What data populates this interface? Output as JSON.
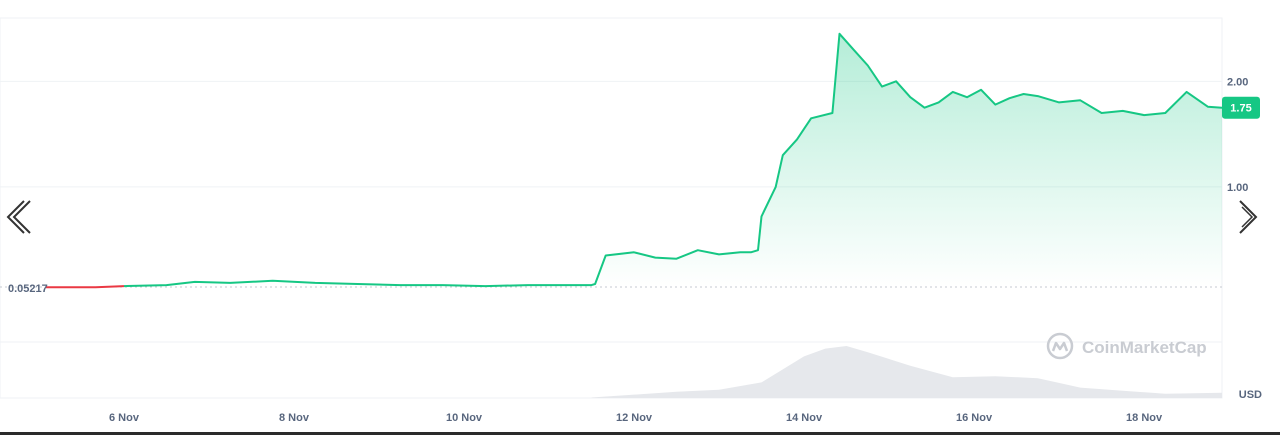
{
  "navigation": {
    "prev_icon": "chevron-left-double-icon",
    "next_icon": "chevron-right-icon"
  },
  "watermark": {
    "text": "CoinMarketCap",
    "icon": "coinmarketcap-logo-icon"
  },
  "currency_label": "USD",
  "colors": {
    "up_line": "#16c784",
    "down_line": "#ea3943",
    "area_top": "#16c784",
    "grid": "#eff2f5",
    "baseline": "#c5c9d0",
    "volume": "#e6e8ec",
    "badge_bg": "#16c784"
  },
  "chart_data": {
    "type": "area",
    "title": "",
    "xlabel": "",
    "ylabel": "USD",
    "x_ticks": [
      "6 Nov",
      "8 Nov",
      "10 Nov",
      "12 Nov",
      "14 Nov",
      "16 Nov",
      "18 Nov"
    ],
    "y_ticks": [
      "1.00",
      "2.00"
    ],
    "ylim": [
      -1.0,
      2.6
    ],
    "xlim": [
      "4 Nov 13:00",
      "18 Nov 22:00"
    ],
    "baseline_value": 0.05217,
    "baseline_label": "0.05217",
    "current_price": "1.75",
    "grid": true,
    "x": [
      "5 Nov 02:00",
      "5 Nov 12:00",
      "5 Nov 16:00",
      "6 Nov 00:00",
      "6 Nov 12:00",
      "6 Nov 20:00",
      "7 Nov 06:00",
      "7 Nov 18:00",
      "8 Nov 06:00",
      "8 Nov 18:00",
      "9 Nov 06:00",
      "9 Nov 18:00",
      "10 Nov 06:00",
      "10 Nov 18:00",
      "11 Nov 06:00",
      "11 Nov 12:00",
      "11 Nov 13:00",
      "11 Nov 16:00",
      "12 Nov 00:00",
      "12 Nov 06:00",
      "12 Nov 12:00",
      "12 Nov 18:00",
      "13 Nov 00:00",
      "13 Nov 06:00",
      "13 Nov 09:00",
      "13 Nov 11:00",
      "13 Nov 12:00",
      "13 Nov 16:00",
      "13 Nov 18:00",
      "13 Nov 22:00",
      "14 Nov 02:00",
      "14 Nov 08:00",
      "14 Nov 10:00",
      "14 Nov 14:00",
      "14 Nov 18:00",
      "14 Nov 22:00",
      "15 Nov 02:00",
      "15 Nov 06:00",
      "15 Nov 10:00",
      "15 Nov 14:00",
      "15 Nov 18:00",
      "15 Nov 22:00",
      "16 Nov 02:00",
      "16 Nov 06:00",
      "16 Nov 10:00",
      "16 Nov 14:00",
      "16 Nov 18:00",
      "17 Nov 00:00",
      "17 Nov 06:00",
      "17 Nov 12:00",
      "17 Nov 18:00",
      "18 Nov 00:00",
      "18 Nov 06:00",
      "18 Nov 12:00",
      "18 Nov 18:00",
      "18 Nov 22:00"
    ],
    "series": [
      {
        "values": [
          0.05,
          0.05,
          0.05,
          0.06,
          0.07,
          0.1,
          0.09,
          0.11,
          0.09,
          0.08,
          0.07,
          0.07,
          0.06,
          0.07,
          0.07,
          0.07,
          0.08,
          0.35,
          0.38,
          0.33,
          0.32,
          0.4,
          0.36,
          0.38,
          0.38,
          0.4,
          0.72,
          1.0,
          1.3,
          1.45,
          1.65,
          1.7,
          2.45,
          2.3,
          2.15,
          1.95,
          2.0,
          1.85,
          1.75,
          1.8,
          1.9,
          1.85,
          1.92,
          1.78,
          1.84,
          1.88,
          1.86,
          1.8,
          1.82,
          1.7,
          1.72,
          1.68,
          1.7,
          1.9,
          1.76,
          1.75
        ],
        "down_until_index": 3
      }
    ],
    "volume": {
      "x": [
        "11 Nov 12:00",
        "12 Nov 12:00",
        "13 Nov 00:00",
        "13 Nov 12:00",
        "13 Nov 18:00",
        "14 Nov 00:00",
        "14 Nov 06:00",
        "14 Nov 12:00",
        "14 Nov 18:00",
        "15 Nov 06:00",
        "15 Nov 18:00",
        "16 Nov 06:00",
        "16 Nov 18:00",
        "17 Nov 06:00",
        "17 Nov 18:00",
        "18 Nov 06:00",
        "18 Nov 22:00"
      ],
      "values": [
        0.01,
        0.12,
        0.16,
        0.3,
        0.55,
        0.8,
        0.95,
        1.0,
        0.88,
        0.62,
        0.4,
        0.42,
        0.38,
        0.2,
        0.14,
        0.08,
        0.1
      ]
    }
  }
}
